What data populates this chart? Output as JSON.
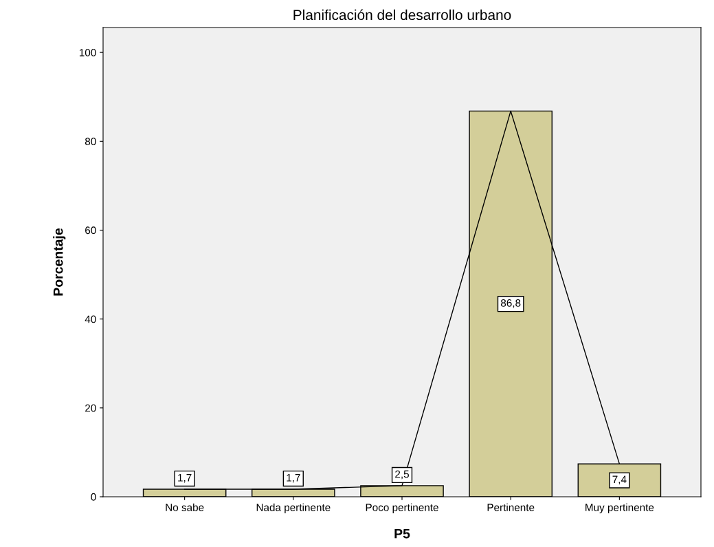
{
  "chart_data": {
    "type": "bar",
    "title": "Planificación del desarrollo urbano",
    "xlabel": "P5",
    "ylabel": "Porcentaje",
    "categories": [
      "No sabe",
      "Nada pertinente",
      "Poco pertinente",
      "Pertinente",
      "Muy pertinente"
    ],
    "series": [
      {
        "color": "#d3ce99",
        "values": [
          1.7,
          1.7,
          2.5,
          86.8,
          7.4
        ],
        "value_labels": [
          "1,7",
          "1,7",
          "2,5",
          "86,8",
          "7,4"
        ]
      },
      {
        "type": "line",
        "color": "#000000",
        "values": [
          1.7,
          1.7,
          2.5,
          86.8,
          7.4
        ],
        "marker": "none",
        "line_style": "solid"
      }
    ],
    "ylim": [
      0,
      105.6
    ],
    "yticks": [
      0,
      20,
      40,
      60,
      80,
      100
    ],
    "grid": false,
    "legend": false
  }
}
